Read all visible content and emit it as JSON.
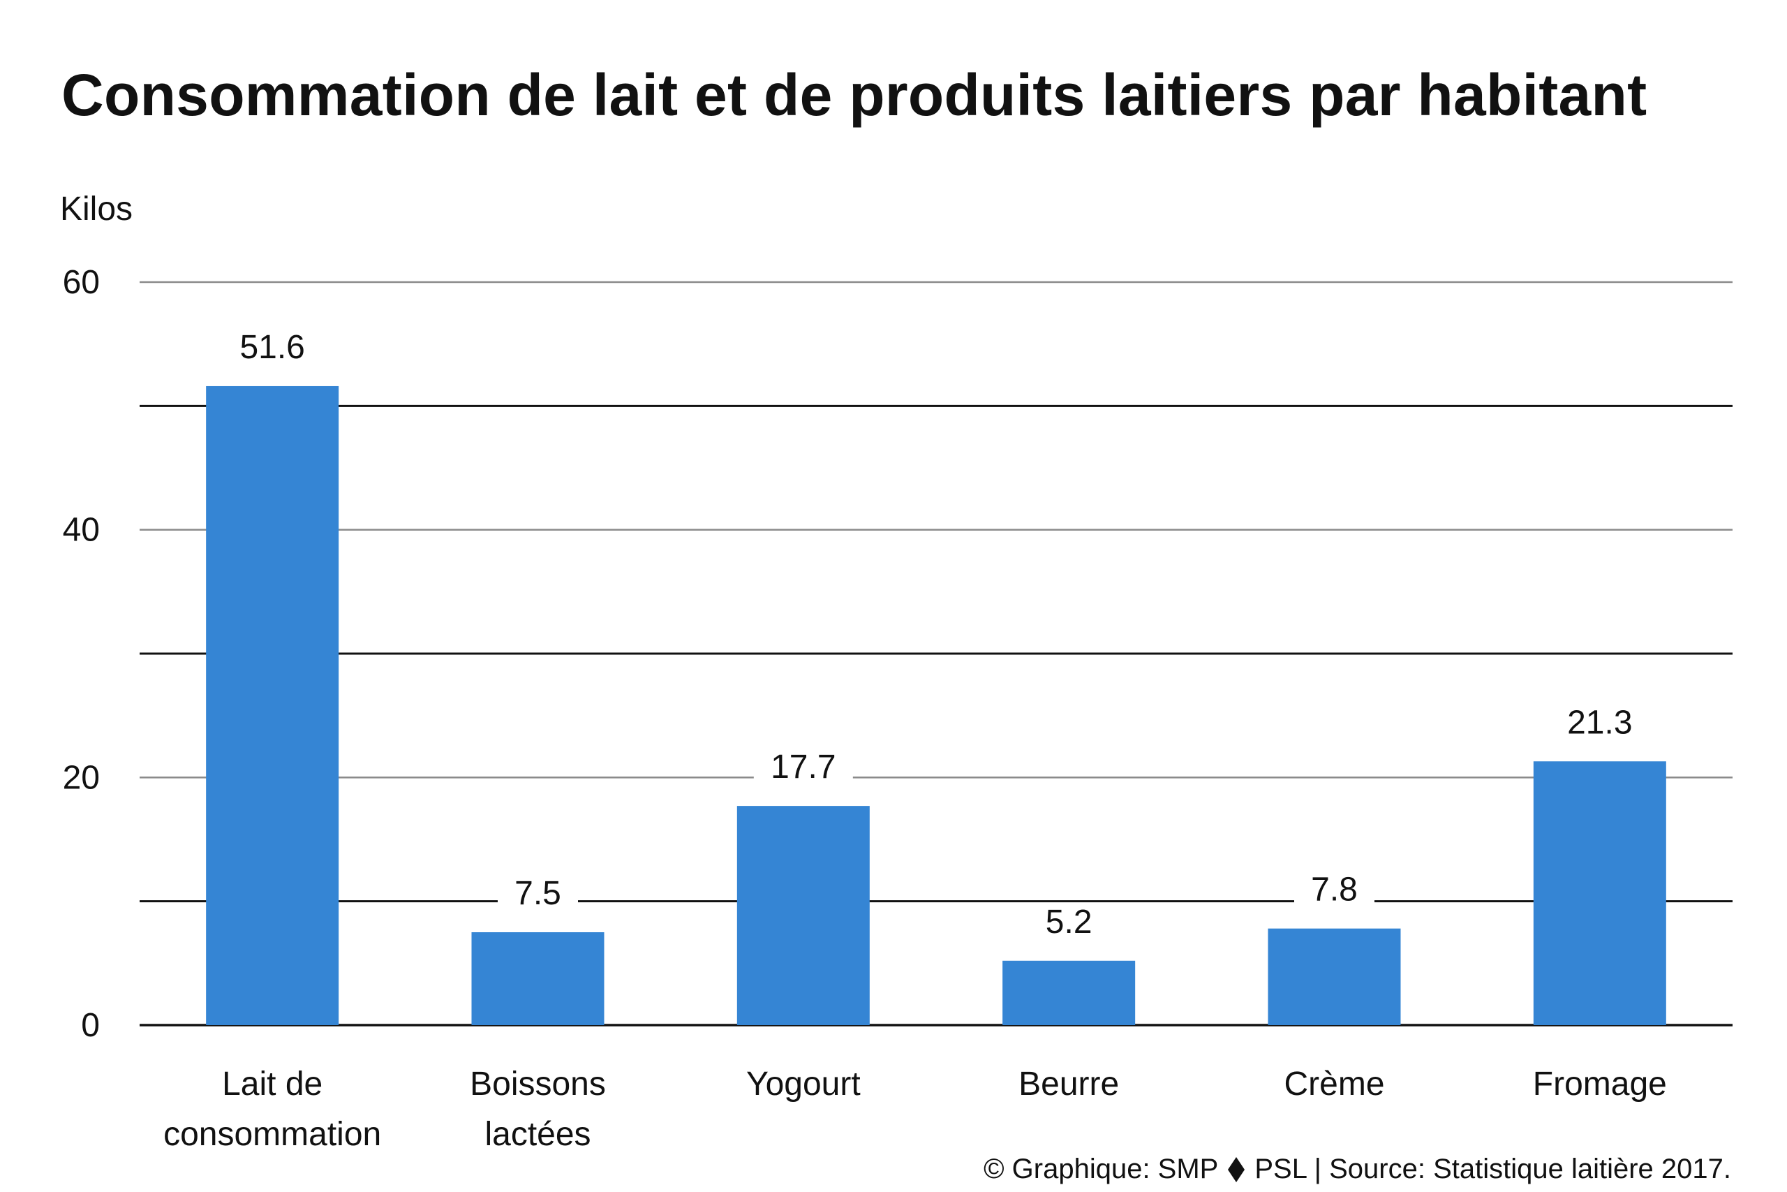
{
  "chart_data": {
    "type": "bar",
    "title": "Consommation de lait et de produits laitiers par habitant",
    "ylabel": "Kilos",
    "xlabel": "",
    "categories": [
      "Lait de consommation",
      "Boissons lactées",
      "Yogourt",
      "Beurre",
      "Crème",
      "Fromage"
    ],
    "category_lines": [
      [
        "Lait de",
        "consommation"
      ],
      [
        "Boissons",
        "lactées"
      ],
      [
        "Yogourt"
      ],
      [
        "Beurre"
      ],
      [
        "Crème"
      ],
      [
        "Fromage"
      ]
    ],
    "values": [
      51.6,
      7.5,
      17.7,
      5.2,
      7.8,
      21.3
    ],
    "value_labels": [
      "51.6",
      "7.5",
      "17.7",
      "5.2",
      "7.8",
      "21.3"
    ],
    "ylim": [
      0,
      60
    ],
    "yticks": [
      0,
      20,
      40,
      60
    ],
    "gridlines": [
      10,
      20,
      30,
      40,
      50,
      60
    ],
    "grid": true,
    "legend": "none",
    "bar_color": "#3585d4",
    "major_grid_color": "#111111",
    "minor_grid_color": "#8a8a8a"
  },
  "credit": {
    "left": "© Graphique: SMP",
    "right": "PSL | Source: Statistique laitière 2017."
  }
}
